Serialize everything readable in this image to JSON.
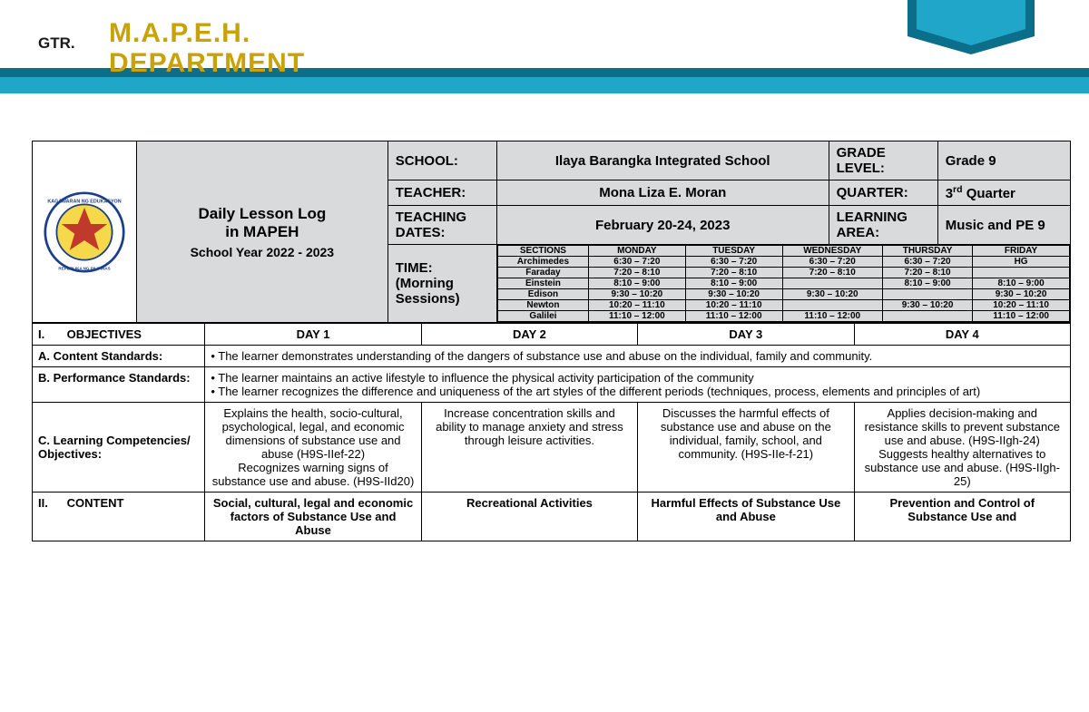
{
  "header": {
    "gtr": "GTR.",
    "dept_title": "M.A.P.E.H. DEPARTMENT"
  },
  "info": {
    "log_title_l1": "Daily Lesson Log",
    "log_title_l2": "in MAPEH",
    "log_title_l3": "School Year 2022 - 2023",
    "school_label": "SCHOOL:",
    "school_value": "Ilaya Barangka Integrated School",
    "grade_label": "GRADE LEVEL:",
    "grade_value": "Grade 9",
    "teacher_label": "TEACHER:",
    "teacher_value": "Mona Liza E. Moran",
    "quarter_label": "QUARTER:",
    "quarter_value": "3rd Quarter",
    "dates_label": "TEACHING DATES:",
    "dates_value": "February 20-24, 2023",
    "area_label": "LEARNING AREA:",
    "area_value": "Music and PE 9",
    "time_label": "TIME: (Morning Sessions)"
  },
  "schedule": {
    "cols": [
      "SECTIONS",
      "MONDAY",
      "TUESDAY",
      "WEDNESDAY",
      "THURSDAY",
      "FRIDAY"
    ],
    "rows": [
      [
        "Archimedes",
        "6:30 – 7:20",
        "6:30 – 7:20",
        "6:30 – 7:20",
        "6:30 – 7:20",
        "HG"
      ],
      [
        "Faraday",
        "7:20 – 8:10",
        "7:20 – 8:10",
        "7:20 – 8:10",
        "7:20 – 8:10",
        ""
      ],
      [
        "Einstein",
        "8:10 – 9:00",
        "8:10 – 9:00",
        "",
        "8:10 – 9:00",
        "8:10 – 9:00"
      ],
      [
        "Edison",
        "9:30 – 10:20",
        "9:30 – 10:20",
        "9:30 – 10:20",
        "",
        "9:30 – 10:20"
      ],
      [
        "Newton",
        "10:20 – 11:10",
        "10:20 – 11:10",
        "",
        "9:30 – 10:20",
        "10:20 – 11:10"
      ],
      [
        "Galilei",
        "11:10 – 12:00",
        "11:10 – 12:00",
        "11:10 – 12:00",
        "",
        "11:10 – 12:00"
      ]
    ]
  },
  "objectives": {
    "section_num": "I.",
    "section_title": "OBJECTIVES",
    "day1": "DAY 1",
    "day2": "DAY 2",
    "day3": "DAY 3",
    "day4": "DAY 4",
    "a_label": "A. Content Standards:",
    "a_text": "• The learner demonstrates understanding of the dangers of substance use and abuse on the individual, family and community.",
    "b_label": "B. Performance Standards:",
    "b_text1": "• The learner maintains an active lifestyle to influence the physical activity participation of the community",
    "b_text2": "• The learner recognizes the difference and uniqueness of the art styles of the different periods (techniques, process, elements and principles of art)",
    "c_label": "C. Learning Competencies/ Objectives:",
    "c_day1": "Explains the health, socio-cultural, psychological, legal, and economic dimensions of substance use and abuse (H9S-IIef-22)\nRecognizes warning signs of substance use and abuse. (H9S-IId20)",
    "c_day2": "Increase concentration skills and ability to manage anxiety and stress through leisure activities.",
    "c_day3": "Discusses the harmful effects of substance use and abuse on the individual, family, school, and community. (H9S-IIe-f-21)",
    "c_day4": "Applies decision-making and resistance skills to prevent substance use and abuse. (H9S-IIgh-24) Suggests healthy alternatives to substance use and abuse. (H9S-IIgh-25)"
  },
  "content": {
    "section_num": "II.",
    "section_title": "CONTENT",
    "day1": "Social, cultural, legal and economic factors of Substance Use and Abuse",
    "day2": "Recreational Activities",
    "day3": "Harmful Effects of Substance Use and Abuse",
    "day4": "Prevention and Control of Substance Use and"
  },
  "colors": {
    "accent_yellow": "#c8a308",
    "teal_dark": "#0b6e8a",
    "teal_light": "#1fa6c9",
    "grey_bg": "#d9dadb"
  }
}
